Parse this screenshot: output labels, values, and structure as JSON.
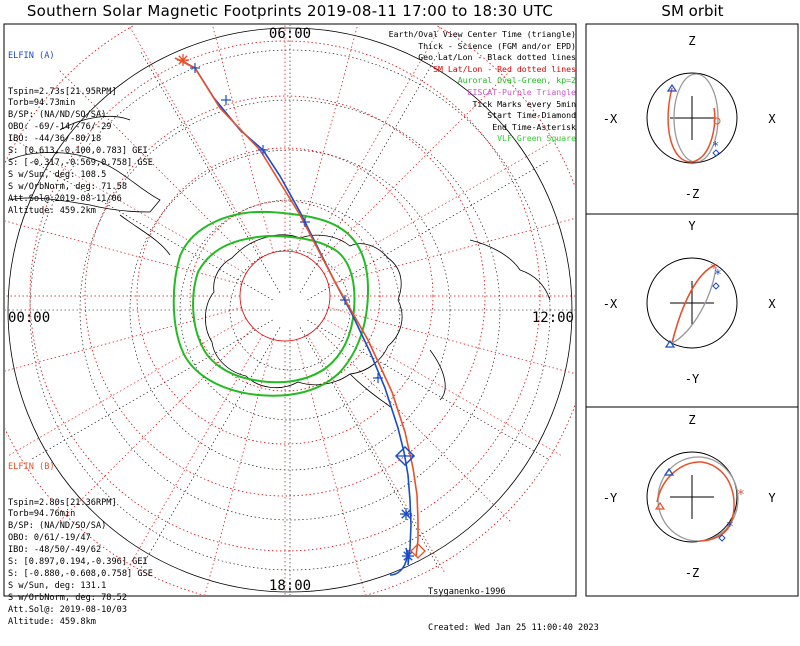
{
  "title": "Southern Solar Magnetic Footprints 2019-08-11 17:00 to 18:30 UTC",
  "orbit_title": "SM orbit",
  "elfin_a": {
    "name": "ELFIN (A)",
    "lines": [
      "Tspin=2.73s[21.95RPM]",
      "Torb=94.73min",
      "B/SP: (NA/ND/SO/SA)",
      "OBO: -69/-14/-76/-29",
      "IBO: -44/36/-80/18",
      "S: [0.613,-0.100,0.783] GEI",
      "S: [-0.317,-0.569,0.758] GSE",
      "S w/Sun, deg: 108.5",
      "S w/OrbNorm, deg: 71.58",
      "Att.Sol@:2019-08-11/06",
      "Altitude: 459.2km"
    ],
    "color": "#1a4cc8"
  },
  "elfin_b": {
    "name": "ELFIN (B)",
    "lines": [
      "Tspin=2.80s[21.36RPM]",
      "Torb=94.76min",
      "B/SP: (NA/ND/SO/SA)",
      "OBO: 0/61/-19/47",
      "IBO: -48/50/-49/62",
      "S: [0.897,0.194,-0.396] GEI",
      "S: [-0.880,-0.608,0.758] GSE",
      "S w/Sun, deg: 131.1",
      "S w/OrbNorm, deg: 78.52",
      "Att.Sol@: 2019-08-10/03",
      "Altitude: 459.8km"
    ],
    "color": "#e8502a"
  },
  "legend": [
    {
      "text": "Earth/Oval View Center Time (triangle)",
      "color": "#000000"
    },
    {
      "text": "Thick - Science (FGM and/or EPD)",
      "color": "#000000"
    },
    {
      "text": "Geo Lat/Lon - Black dotted lines",
      "color": "#000000"
    },
    {
      "text": "SM Lat/Lon - Red dotted lines",
      "color": "#e00000"
    },
    {
      "text": "Auroral Oval-Green, kp=2",
      "color": "#22bb22"
    },
    {
      "text": "EISCAT-Purple Triangle",
      "color": "#cc55cc"
    },
    {
      "text": "Tick Marks every 5min",
      "color": "#000000"
    },
    {
      "text": "Start Time-Diamond",
      "color": "#000000"
    },
    {
      "text": "End Time-Asterisk",
      "color": "#000000"
    },
    {
      "text": "VLF-Green Square",
      "color": "#33cc33"
    }
  ],
  "footer": {
    "model": "Tsyganenko-1996",
    "created": "Created: Wed Jan 25 11:00:40 2023"
  },
  "orbit_panels": {
    "panel1": {
      "top": "Z",
      "bottom": "-Z",
      "left": "-X",
      "right": "X"
    },
    "panel2": {
      "top": "Y",
      "bottom": "-Y",
      "left": "-X",
      "right": "X"
    },
    "panel3": {
      "top": "Z",
      "bottom": "-Z",
      "left": "-Y",
      "right": "Y"
    }
  },
  "chart_data": {
    "type": "polar-map",
    "title": "Southern Solar Magnetic Footprints 2019-08-11 17:00 to 18:30 UTC",
    "mlt_labels": {
      "top": "06:00",
      "left": "00:00",
      "right": "12:00",
      "bottom": "18:00"
    },
    "sm_lat_rings_deg": [
      -90,
      -80,
      -70,
      -60,
      -50,
      -40
    ],
    "series": [
      {
        "name": "ELFIN (A)",
        "color": "#1a4cc8",
        "footprint_xy": [
          [
            180,
            60
          ],
          [
            195,
            68
          ],
          [
            214,
            98
          ],
          [
            240,
            130
          ],
          [
            263,
            150
          ],
          [
            280,
            176
          ],
          [
            300,
            212
          ],
          [
            318,
            248
          ],
          [
            335,
            282
          ],
          [
            352,
            314
          ],
          [
            370,
            352
          ],
          [
            385,
            388
          ],
          [
            398,
            428
          ],
          [
            404,
            452
          ],
          [
            408,
            475
          ],
          [
            410,
            500
          ],
          [
            411,
            525
          ],
          [
            410,
            548
          ],
          [
            408,
            565
          ]
        ]
      },
      {
        "name": "ELFIN (B)",
        "color": "#e8502a",
        "footprint_xy": [
          [
            175,
            58
          ],
          [
            195,
            68
          ],
          [
            220,
            108
          ],
          [
            260,
            150
          ],
          [
            300,
            215
          ],
          [
            335,
            282
          ],
          [
            368,
            340
          ],
          [
            392,
            392
          ],
          [
            405,
            432
          ],
          [
            413,
            468
          ],
          [
            417,
            495
          ],
          [
            418,
            520
          ],
          [
            418,
            540
          ],
          [
            416,
            556
          ]
        ]
      }
    ],
    "auroral_oval": {
      "kp": 2,
      "color": "#22bb22"
    }
  }
}
